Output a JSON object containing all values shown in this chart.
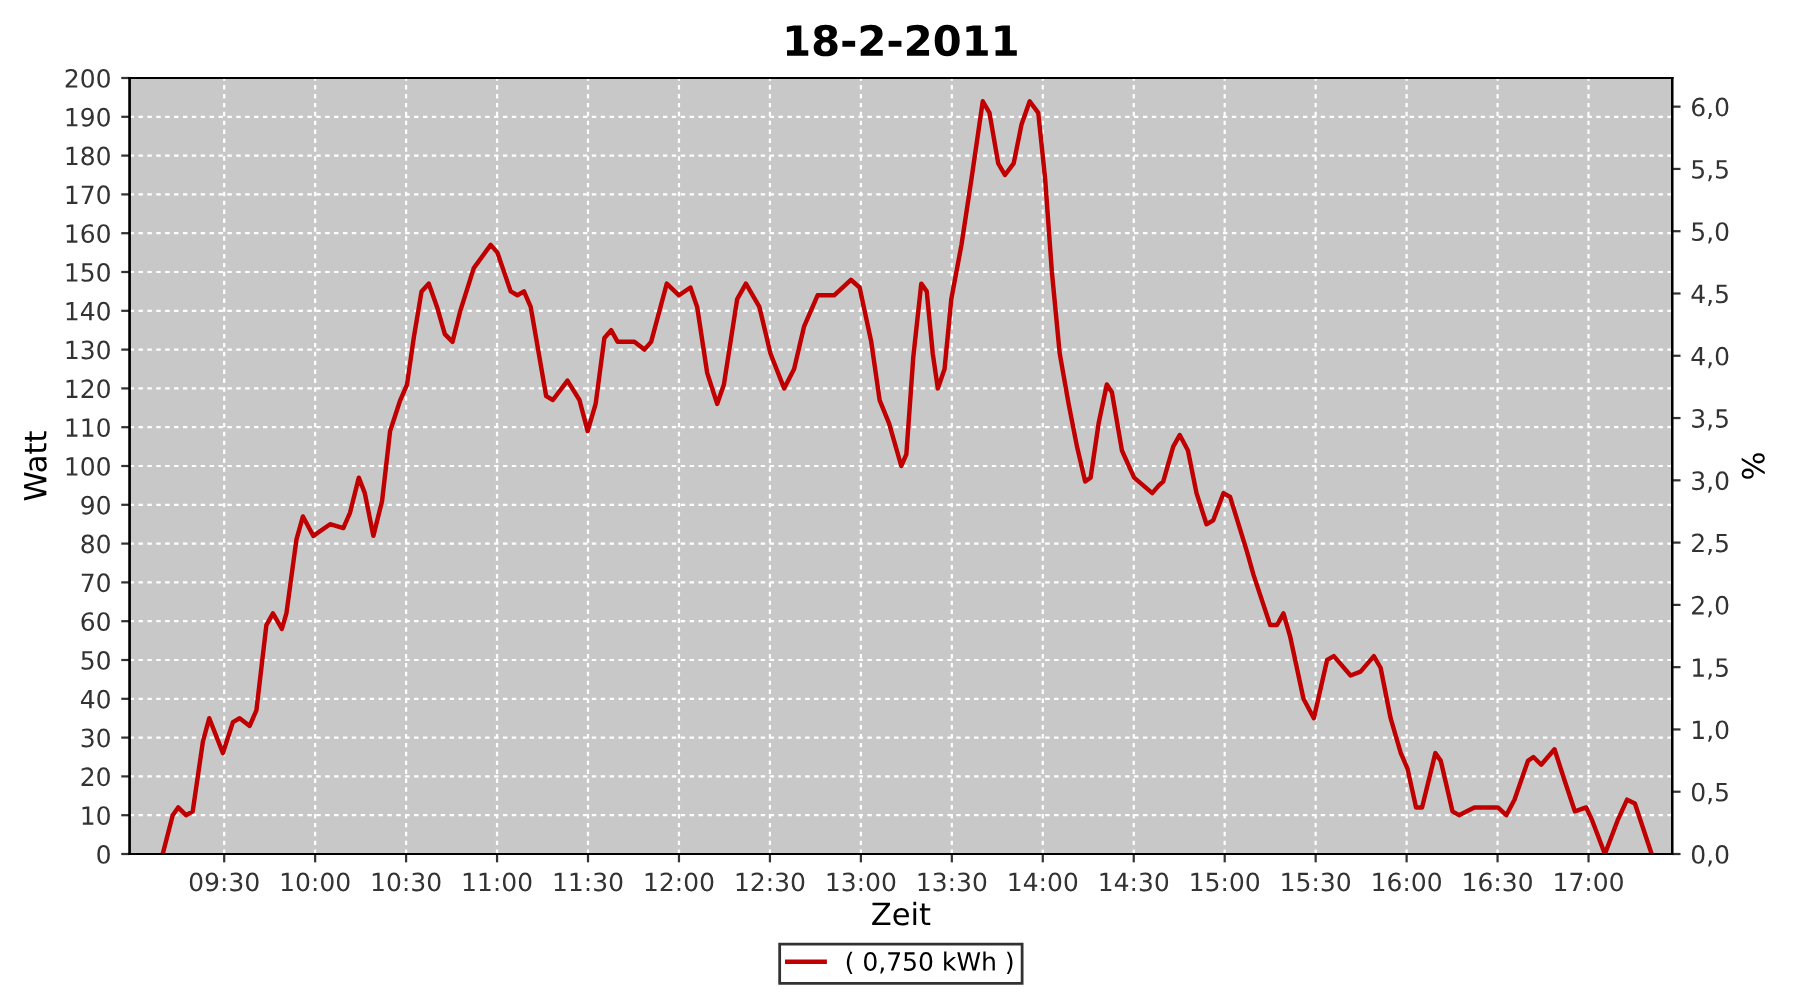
{
  "chart_data": {
    "type": "line",
    "title": "18-2-2011",
    "xlabel": "Zeit",
    "ylabel": "Watt",
    "y2label": "%",
    "xlim": [
      8.98,
      17.46
    ],
    "xticks": [
      {
        "value": 9.5,
        "label": "09:30"
      },
      {
        "value": 10,
        "label": "10:00"
      },
      {
        "value": 10.5,
        "label": "10:30"
      },
      {
        "value": 11,
        "label": "11:00"
      },
      {
        "value": 11.5,
        "label": "11:30"
      },
      {
        "value": 12,
        "label": "12:00"
      },
      {
        "value": 12.5,
        "label": "12:30"
      },
      {
        "value": 13,
        "label": "13:00"
      },
      {
        "value": 13.5,
        "label": "13:30"
      },
      {
        "value": 14,
        "label": "14:00"
      },
      {
        "value": 14.5,
        "label": "14:30"
      },
      {
        "value": 15,
        "label": "15:00"
      },
      {
        "value": 15.5,
        "label": "15:30"
      },
      {
        "value": 16,
        "label": "16:00"
      },
      {
        "value": 16.5,
        "label": "16:30"
      },
      {
        "value": 17,
        "label": "17:00"
      }
    ],
    "ylim": [
      0,
      200
    ],
    "yticks": [
      0,
      10,
      20,
      30,
      40,
      50,
      60,
      70,
      80,
      90,
      100,
      110,
      120,
      130,
      140,
      150,
      160,
      170,
      180,
      190,
      200
    ],
    "y2lim": [
      0,
      6.23
    ],
    "y2ticks": [
      {
        "value": 0,
        "label": "0,0"
      },
      {
        "value": 0.5,
        "label": "0,5"
      },
      {
        "value": 1,
        "label": "1,0"
      },
      {
        "value": 1.5,
        "label": "1,5"
      },
      {
        "value": 2,
        "label": "2,0"
      },
      {
        "value": 2.5,
        "label": "2,5"
      },
      {
        "value": 3,
        "label": "3,0"
      },
      {
        "value": 3.5,
        "label": "3,5"
      },
      {
        "value": 4,
        "label": "4,0"
      },
      {
        "value": 4.5,
        "label": "4,5"
      },
      {
        "value": 5,
        "label": "5,0"
      },
      {
        "value": 5.5,
        "label": "5,5"
      },
      {
        "value": 6,
        "label": "6,0"
      }
    ],
    "grid": true,
    "legend": "bottom",
    "line_style": "solid",
    "marker": "none",
    "series": [
      {
        "name": "( 0,750 kWh )",
        "color": "#c00000",
        "x": [
          9.162,
          9.217,
          9.247,
          9.29,
          9.327,
          9.383,
          9.418,
          9.493,
          9.548,
          9.585,
          9.64,
          9.677,
          9.732,
          9.768,
          9.817,
          9.842,
          9.897,
          9.933,
          9.99,
          10.082,
          10.155,
          10.192,
          10.24,
          10.273,
          10.32,
          10.368,
          10.412,
          10.468,
          10.505,
          10.542,
          10.585,
          10.625,
          10.67,
          10.713,
          10.755,
          10.798,
          10.872,
          10.965,
          11.002,
          11.075,
          11.112,
          11.148,
          11.185,
          11.27,
          11.307,
          11.387,
          11.453,
          11.498,
          11.542,
          11.59,
          11.627,
          11.663,
          11.755,
          11.81,
          11.847,
          11.933,
          12.0,
          12.063,
          12.1,
          12.155,
          12.21,
          12.247,
          12.32,
          12.368,
          12.442,
          12.503,
          12.578,
          12.633,
          12.688,
          12.762,
          12.853,
          12.945,
          12.993,
          13.057,
          13.103,
          13.155,
          13.222,
          13.25,
          13.288,
          13.332,
          13.362,
          13.395,
          13.423,
          13.46,
          13.497,
          13.553,
          13.608,
          13.67,
          13.707,
          13.755,
          13.792,
          13.84,
          13.883,
          13.928,
          13.975,
          14.013,
          14.05,
          14.093,
          14.142,
          14.188,
          14.233,
          14.263,
          14.307,
          14.352,
          14.38,
          14.435,
          14.502,
          14.602,
          14.638,
          14.662,
          14.717,
          14.753,
          14.798,
          14.845,
          14.9,
          14.937,
          14.993,
          15.03,
          15.122,
          15.158,
          15.25,
          15.287,
          15.323,
          15.36,
          15.433,
          15.49,
          15.563,
          15.6,
          15.692,
          15.747,
          15.82,
          15.857,
          15.912,
          15.968,
          16.005,
          16.052,
          16.085,
          16.158,
          16.188,
          16.252,
          16.288,
          16.372,
          16.502,
          16.548,
          16.593,
          16.667,
          16.697,
          16.74,
          16.813,
          16.868,
          16.925,
          16.987,
          17.017,
          17.09,
          17.163,
          17.212,
          17.255,
          17.347
        ],
        "values": [
          0,
          10,
          12,
          10,
          11,
          29,
          35,
          26,
          34,
          35,
          33,
          37,
          59,
          62,
          58,
          62,
          81,
          87,
          82,
          85,
          84,
          88,
          97,
          93,
          82,
          91,
          109,
          117,
          121,
          133,
          145,
          147,
          141,
          134,
          132,
          140,
          151,
          157,
          155,
          145,
          144,
          145,
          141,
          118,
          117,
          122,
          117,
          109,
          116,
          133,
          135,
          132,
          132,
          130,
          132,
          147,
          144,
          146,
          141,
          124,
          116,
          121,
          143,
          147,
          141,
          129,
          120,
          125,
          136,
          144,
          144,
          148,
          146,
          132,
          117,
          111,
          100,
          103,
          128,
          147,
          145,
          129,
          120,
          125,
          143,
          157,
          174,
          194,
          191,
          178,
          175,
          178,
          188,
          194,
          191,
          174,
          150,
          129,
          116,
          105,
          96,
          97,
          111,
          121,
          119,
          104,
          97,
          93,
          95,
          96,
          105,
          108,
          104,
          93,
          85,
          86,
          93,
          92,
          78,
          72,
          59,
          59,
          62,
          56,
          40,
          35,
          50,
          51,
          46,
          47,
          51,
          48,
          35,
          26,
          22,
          12,
          12,
          26,
          24,
          11,
          10,
          12,
          12,
          10,
          14,
          24,
          25,
          23,
          27,
          19,
          11,
          12,
          9,
          0,
          9,
          14,
          13,
          0
        ]
      }
    ]
  }
}
